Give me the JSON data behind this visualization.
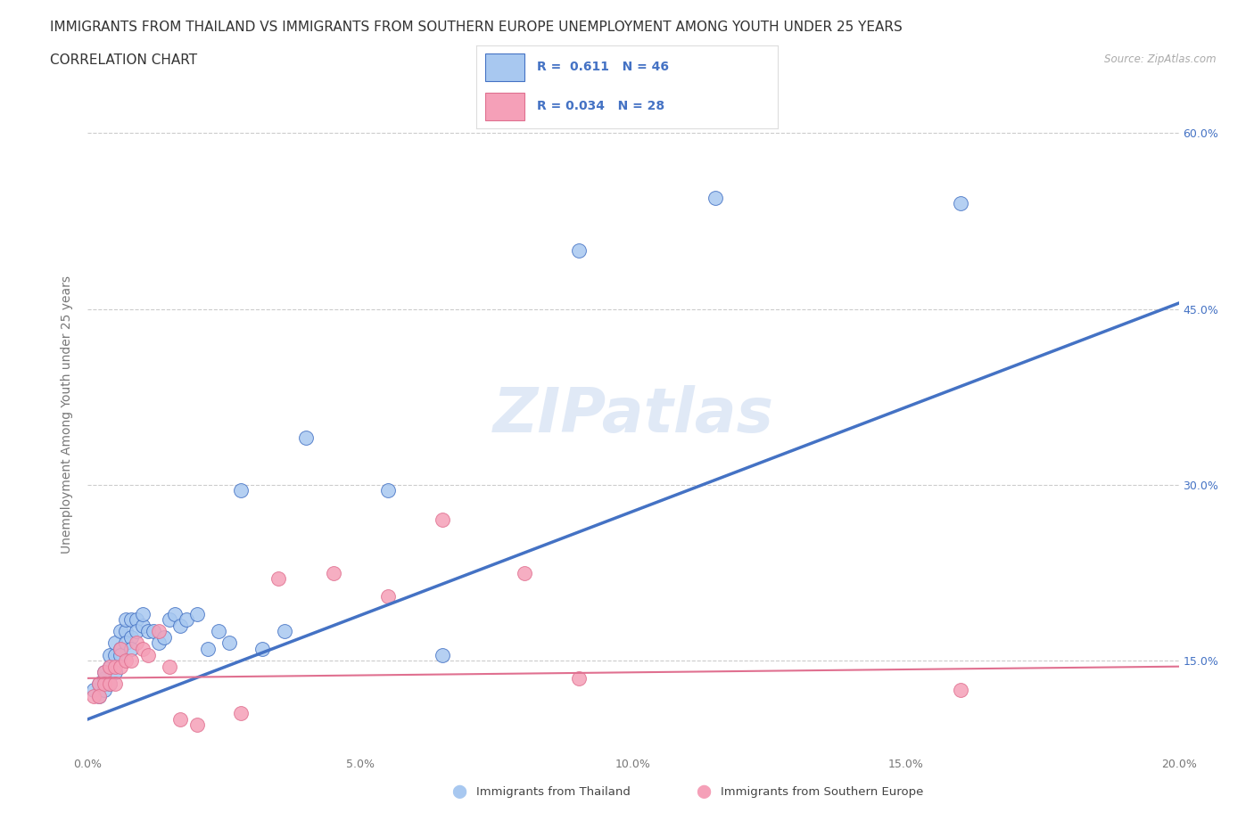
{
  "title_line1": "IMMIGRANTS FROM THAILAND VS IMMIGRANTS FROM SOUTHERN EUROPE UNEMPLOYMENT AMONG YOUTH UNDER 25 YEARS",
  "title_line2": "CORRELATION CHART",
  "source_text": "Source: ZipAtlas.com",
  "ylabel": "Unemployment Among Youth under 25 years",
  "xlim": [
    0.0,
    0.2
  ],
  "ylim": [
    0.07,
    0.65
  ],
  "xticks": [
    0.0,
    0.05,
    0.1,
    0.15,
    0.2
  ],
  "ytick_values": [
    0.15,
    0.3,
    0.45,
    0.6
  ],
  "right_ytick_labels": [
    "15.0%",
    "30.0%",
    "45.0%",
    "60.0%"
  ],
  "xtick_labels": [
    "0.0%",
    "5.0%",
    "10.0%",
    "15.0%",
    "20.0%"
  ],
  "legend_label1": "Immigrants from Thailand",
  "legend_label2": "Immigrants from Southern Europe",
  "R1": "0.611",
  "N1": "46",
  "R2": "0.034",
  "N2": "28",
  "color_thailand": "#a8c8f0",
  "color_se": "#f5a0b8",
  "line_color_thailand": "#4472c4",
  "line_color_se": "#e07090",
  "background_color": "#ffffff",
  "watermark_text": "ZIPatlas",
  "watermark_color": "#c8d8f0",
  "thailand_x": [
    0.001,
    0.002,
    0.002,
    0.003,
    0.003,
    0.003,
    0.004,
    0.004,
    0.004,
    0.005,
    0.005,
    0.005,
    0.006,
    0.006,
    0.006,
    0.007,
    0.007,
    0.007,
    0.008,
    0.008,
    0.008,
    0.009,
    0.009,
    0.01,
    0.01,
    0.011,
    0.012,
    0.013,
    0.014,
    0.015,
    0.016,
    0.017,
    0.018,
    0.02,
    0.022,
    0.024,
    0.026,
    0.028,
    0.032,
    0.036,
    0.04,
    0.055,
    0.065,
    0.09,
    0.115,
    0.16
  ],
  "thailand_y": [
    0.125,
    0.13,
    0.12,
    0.135,
    0.14,
    0.125,
    0.145,
    0.155,
    0.13,
    0.155,
    0.165,
    0.14,
    0.16,
    0.175,
    0.155,
    0.175,
    0.185,
    0.165,
    0.185,
    0.17,
    0.16,
    0.185,
    0.175,
    0.18,
    0.19,
    0.175,
    0.175,
    0.165,
    0.17,
    0.185,
    0.19,
    0.18,
    0.185,
    0.19,
    0.16,
    0.175,
    0.165,
    0.295,
    0.16,
    0.175,
    0.34,
    0.295,
    0.155,
    0.5,
    0.545,
    0.54
  ],
  "se_x": [
    0.001,
    0.002,
    0.002,
    0.003,
    0.003,
    0.004,
    0.004,
    0.005,
    0.005,
    0.006,
    0.006,
    0.007,
    0.008,
    0.009,
    0.01,
    0.011,
    0.013,
    0.015,
    0.017,
    0.02,
    0.028,
    0.035,
    0.045,
    0.055,
    0.065,
    0.08,
    0.09,
    0.16
  ],
  "se_y": [
    0.12,
    0.13,
    0.12,
    0.14,
    0.13,
    0.145,
    0.13,
    0.145,
    0.13,
    0.145,
    0.16,
    0.15,
    0.15,
    0.165,
    0.16,
    0.155,
    0.175,
    0.145,
    0.1,
    0.095,
    0.105,
    0.22,
    0.225,
    0.205,
    0.27,
    0.225,
    0.135,
    0.125
  ],
  "gridline_color": "#cccccc",
  "title_fontsize": 11,
  "axis_label_fontsize": 10,
  "tick_fontsize": 9,
  "regression_th_x0": 0.0,
  "regression_th_y0": 0.1,
  "regression_th_x1": 0.2,
  "regression_th_y1": 0.455,
  "regression_se_x0": 0.0,
  "regression_se_y0": 0.135,
  "regression_se_x1": 0.2,
  "regression_se_y1": 0.145
}
